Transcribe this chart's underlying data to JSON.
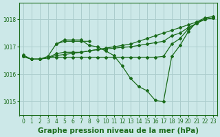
{
  "bg_color": "#cce8e8",
  "grid_color": "#aacccc",
  "line_color": "#1a6b1a",
  "title": "Graphe pression niveau de la mer (hPa)",
  "xlim": [
    -0.5,
    23.5
  ],
  "ylim": [
    1014.5,
    1018.6
  ],
  "yticks": [
    1015,
    1016,
    1017,
    1018
  ],
  "xticks": [
    0,
    1,
    2,
    3,
    4,
    5,
    6,
    7,
    8,
    9,
    10,
    11,
    12,
    13,
    14,
    15,
    16,
    17,
    18,
    19,
    20,
    21,
    22,
    23
  ],
  "lines": [
    {
      "x": [
        0,
        1,
        2,
        3,
        4,
        5,
        6,
        7,
        8,
        9,
        10,
        11,
        12,
        13,
        14,
        15,
        16,
        17,
        18,
        19,
        20,
        21,
        22,
        23
      ],
      "y": [
        1016.7,
        1016.55,
        1016.55,
        1016.65,
        1017.1,
        1017.25,
        1017.25,
        1017.25,
        1017.05,
        1017.0,
        1016.85,
        1016.68,
        1016.3,
        1015.85,
        1015.55,
        1015.4,
        1015.05,
        1015.0,
        1016.65,
        1017.05,
        1017.55,
        1017.9,
        1018.05,
        1018.1
      ]
    },
    {
      "x": [
        0,
        1,
        2,
        3,
        4,
        5,
        6,
        7,
        8,
        9,
        10,
        11,
        12,
        13,
        14,
        15,
        16,
        17,
        18,
        19,
        20,
        21,
        22,
        23
      ],
      "y": [
        1016.65,
        1016.55,
        1016.55,
        1016.6,
        1016.62,
        1016.62,
        1016.62,
        1016.62,
        1016.62,
        1016.62,
        1016.62,
        1016.62,
        1016.62,
        1016.62,
        1016.62,
        1016.62,
        1016.62,
        1016.65,
        1017.1,
        1017.3,
        1017.65,
        1017.85,
        1018.0,
        1018.05
      ]
    },
    {
      "x": [
        0,
        1,
        2,
        3,
        4,
        5,
        6,
        7,
        8,
        9,
        10,
        11,
        12,
        13,
        14,
        15,
        16,
        17,
        18,
        19,
        20,
        21,
        22,
        23
      ],
      "y": [
        1016.65,
        1016.55,
        1016.55,
        1016.6,
        1016.75,
        1016.8,
        1016.8,
        1016.8,
        1016.85,
        1016.9,
        1016.92,
        1016.95,
        1016.98,
        1017.0,
        1017.05,
        1017.1,
        1017.15,
        1017.2,
        1017.4,
        1017.5,
        1017.7,
        1017.85,
        1018.0,
        1018.05
      ]
    },
    {
      "x": [
        0,
        1,
        2,
        3,
        4,
        5,
        6,
        7,
        8,
        9,
        10,
        11,
        12,
        13,
        14,
        15,
        16,
        17,
        18,
        19,
        20,
        21,
        22,
        23
      ],
      "y": [
        1016.65,
        1016.55,
        1016.55,
        1016.6,
        1016.68,
        1016.72,
        1016.76,
        1016.8,
        1016.85,
        1016.9,
        1016.95,
        1017.0,
        1017.05,
        1017.1,
        1017.2,
        1017.3,
        1017.4,
        1017.5,
        1017.6,
        1017.7,
        1017.8,
        1017.9,
        1018.0,
        1018.05
      ]
    },
    {
      "x": [
        4,
        5,
        6,
        7,
        8
      ],
      "y": [
        1017.1,
        1017.2,
        1017.2,
        1017.2,
        1017.2
      ]
    }
  ],
  "marker": "D",
  "markersize": 2.0,
  "linewidth": 0.9,
  "title_fontsize": 7.5,
  "tick_fontsize": 5.5
}
